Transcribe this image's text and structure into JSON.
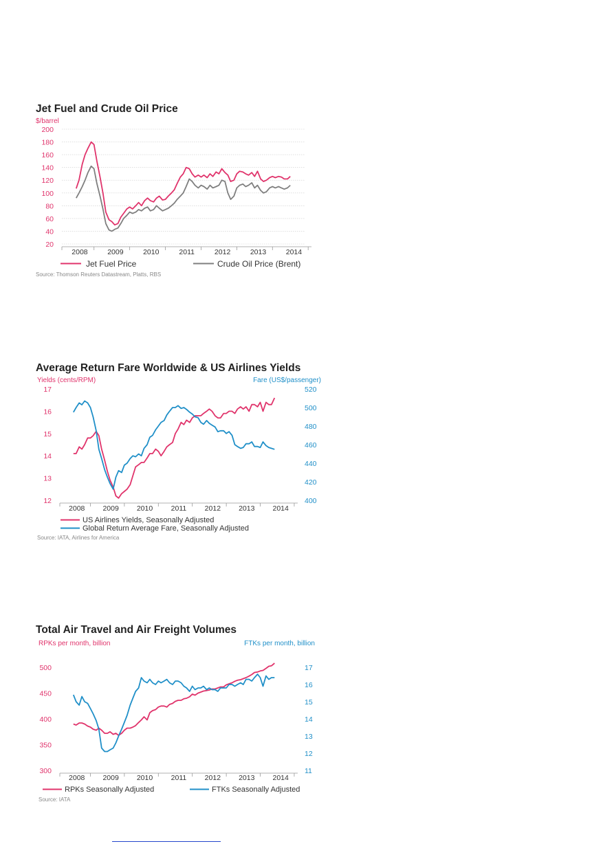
{
  "colors": {
    "pink": "#e0336b",
    "gray": "#7f7f7f",
    "blue": "#1f8fc8"
  },
  "chart_data": [
    {
      "type": "line",
      "title": "Jet Fuel and Crude Oil Price",
      "ylabel": "$/barrel",
      "ylim": [
        20,
        200
      ],
      "yticks": [
        20,
        40,
        60,
        80,
        100,
        120,
        140,
        160,
        180,
        200
      ],
      "xlim": [
        2007.6,
        2014.4
      ],
      "xticks": [
        "2008",
        "2009",
        "2010",
        "2011",
        "2012",
        "2013",
        "2014"
      ],
      "grid": true,
      "legend_position": "bottom",
      "source": "Source: Thomson Reuters Datastream, Platts, RBS",
      "series": [
        {
          "name": "Jet Fuel Price",
          "color": "#e0336b",
          "x": [
            2008.0,
            2008.08,
            2008.17,
            2008.25,
            2008.33,
            2008.42,
            2008.5,
            2008.58,
            2008.67,
            2008.75,
            2008.83,
            2008.92,
            2009.0,
            2009.08,
            2009.17,
            2009.25,
            2009.33,
            2009.42,
            2009.5,
            2009.58,
            2009.67,
            2009.75,
            2009.83,
            2009.92,
            2010.0,
            2010.08,
            2010.17,
            2010.25,
            2010.33,
            2010.42,
            2010.5,
            2010.58,
            2010.67,
            2010.75,
            2010.83,
            2010.92,
            2011.0,
            2011.08,
            2011.17,
            2011.25,
            2011.33,
            2011.42,
            2011.5,
            2011.58,
            2011.67,
            2011.75,
            2011.83,
            2011.92,
            2012.0,
            2012.08,
            2012.17,
            2012.25,
            2012.33,
            2012.42,
            2012.5,
            2012.58,
            2012.67,
            2012.75,
            2012.83,
            2012.92,
            2013.0,
            2013.08,
            2013.17,
            2013.25,
            2013.33,
            2013.42,
            2013.5,
            2013.58,
            2013.67,
            2013.75,
            2013.83,
            2013.92,
            2014.0
          ],
          "values": [
            107,
            120,
            145,
            160,
            170,
            180,
            176,
            150,
            125,
            100,
            70,
            58,
            55,
            50,
            52,
            62,
            68,
            75,
            78,
            75,
            80,
            85,
            80,
            88,
            92,
            88,
            86,
            92,
            95,
            89,
            90,
            95,
            100,
            105,
            115,
            125,
            130,
            140,
            138,
            130,
            125,
            128,
            125,
            128,
            124,
            130,
            126,
            133,
            130,
            138,
            132,
            128,
            118,
            120,
            130,
            134,
            133,
            130,
            128,
            132,
            126,
            134,
            122,
            118,
            120,
            124,
            126,
            124,
            126,
            125,
            122,
            122,
            126
          ]
        },
        {
          "name": "Crude Oil Price (Brent)",
          "color": "#7f7f7f",
          "x": [
            2008.0,
            2008.08,
            2008.17,
            2008.25,
            2008.33,
            2008.42,
            2008.5,
            2008.58,
            2008.67,
            2008.75,
            2008.83,
            2008.92,
            2009.0,
            2009.08,
            2009.17,
            2009.25,
            2009.33,
            2009.42,
            2009.5,
            2009.58,
            2009.67,
            2009.75,
            2009.83,
            2009.92,
            2010.0,
            2010.08,
            2010.17,
            2010.25,
            2010.33,
            2010.42,
            2010.5,
            2010.58,
            2010.67,
            2010.75,
            2010.83,
            2010.92,
            2011.0,
            2011.08,
            2011.17,
            2011.25,
            2011.33,
            2011.42,
            2011.5,
            2011.58,
            2011.67,
            2011.75,
            2011.83,
            2011.92,
            2012.0,
            2012.08,
            2012.17,
            2012.25,
            2012.33,
            2012.42,
            2012.5,
            2012.58,
            2012.67,
            2012.75,
            2012.83,
            2012.92,
            2013.0,
            2013.08,
            2013.17,
            2013.25,
            2013.33,
            2013.42,
            2013.5,
            2013.58,
            2013.67,
            2013.75,
            2013.83,
            2013.92,
            2014.0
          ],
          "values": [
            92,
            100,
            110,
            120,
            132,
            142,
            138,
            115,
            95,
            75,
            52,
            42,
            40,
            43,
            45,
            52,
            60,
            65,
            70,
            68,
            70,
            74,
            72,
            76,
            78,
            72,
            74,
            80,
            76,
            72,
            74,
            76,
            80,
            84,
            90,
            95,
            100,
            110,
            122,
            118,
            112,
            108,
            112,
            110,
            106,
            112,
            108,
            110,
            112,
            120,
            118,
            100,
            90,
            95,
            108,
            112,
            114,
            110,
            112,
            116,
            108,
            112,
            104,
            100,
            102,
            108,
            110,
            108,
            110,
            108,
            106,
            108,
            112
          ]
        }
      ]
    },
    {
      "type": "line",
      "title": "Average Return Fare Worldwide & US Airlines Yields",
      "ylabel": "Yields (cents/RPM)",
      "y2label": "Fare (US$/passenger)",
      "ylim": [
        12,
        17
      ],
      "yticks": [
        12,
        13,
        14,
        15,
        16,
        17
      ],
      "y2lim": [
        400,
        520
      ],
      "y2ticks": [
        400,
        420,
        440,
        460,
        480,
        500,
        520
      ],
      "xlim": [
        2007.6,
        2014.4
      ],
      "xticks": [
        "2008",
        "2009",
        "2010",
        "2011",
        "2012",
        "2013",
        "2014"
      ],
      "grid": false,
      "legend_position": "bottom",
      "source": "Source: IATA, Airlines for America",
      "series": [
        {
          "name": "US Airlines Yields, Seasonally Adjusted",
          "axis": "left",
          "color": "#e0336b",
          "x": [
            2008.0,
            2008.08,
            2008.17,
            2008.25,
            2008.33,
            2008.42,
            2008.5,
            2008.58,
            2008.67,
            2008.75,
            2008.83,
            2008.92,
            2009.0,
            2009.08,
            2009.17,
            2009.25,
            2009.33,
            2009.42,
            2009.5,
            2009.58,
            2009.67,
            2009.75,
            2009.83,
            2009.92,
            2010.0,
            2010.08,
            2010.17,
            2010.25,
            2010.33,
            2010.42,
            2010.5,
            2010.58,
            2010.67,
            2010.75,
            2010.83,
            2010.92,
            2011.0,
            2011.08,
            2011.17,
            2011.25,
            2011.33,
            2011.42,
            2011.5,
            2011.58,
            2011.67,
            2011.75,
            2011.83,
            2011.92,
            2012.0,
            2012.08,
            2012.17,
            2012.25,
            2012.33,
            2012.42,
            2012.5,
            2012.58,
            2012.67,
            2012.75,
            2012.83,
            2012.92,
            2013.0,
            2013.08,
            2013.17,
            2013.25,
            2013.33,
            2013.42,
            2013.5,
            2013.58,
            2013.67,
            2013.75,
            2013.83,
            2013.92
          ],
          "values": [
            14.1,
            14.1,
            14.4,
            14.3,
            14.5,
            14.8,
            14.8,
            14.9,
            15.1,
            14.9,
            14.3,
            13.8,
            13.3,
            12.9,
            12.6,
            12.2,
            12.1,
            12.3,
            12.4,
            12.5,
            12.7,
            13.1,
            13.5,
            13.6,
            13.7,
            13.7,
            13.9,
            14.1,
            14.1,
            14.3,
            14.2,
            14.0,
            14.2,
            14.4,
            14.5,
            14.6,
            15.0,
            15.2,
            15.5,
            15.4,
            15.6,
            15.5,
            15.7,
            15.8,
            15.8,
            15.8,
            15.9,
            16.0,
            16.1,
            16.0,
            15.8,
            15.7,
            15.7,
            15.9,
            15.9,
            16.0,
            16.0,
            15.9,
            16.1,
            16.2,
            16.1,
            16.2,
            16.0,
            16.3,
            16.3,
            16.2,
            16.4,
            16.0,
            16.4,
            16.3,
            16.3,
            16.6
          ]
        },
        {
          "name": "Global Return Average Fare,  Seasonally Adjusted",
          "axis": "right",
          "color": "#1f8fc8",
          "x": [
            2008.0,
            2008.08,
            2008.17,
            2008.25,
            2008.33,
            2008.42,
            2008.5,
            2008.58,
            2008.67,
            2008.75,
            2008.83,
            2008.92,
            2009.0,
            2009.08,
            2009.17,
            2009.25,
            2009.33,
            2009.42,
            2009.5,
            2009.58,
            2009.67,
            2009.75,
            2009.83,
            2009.92,
            2010.0,
            2010.08,
            2010.17,
            2010.25,
            2010.33,
            2010.42,
            2010.5,
            2010.58,
            2010.67,
            2010.75,
            2010.83,
            2010.92,
            2011.0,
            2011.08,
            2011.17,
            2011.25,
            2011.33,
            2011.42,
            2011.5,
            2011.58,
            2011.67,
            2011.75,
            2011.83,
            2011.92,
            2012.0,
            2012.08,
            2012.17,
            2012.25,
            2012.33,
            2012.42,
            2012.5,
            2012.58,
            2012.67,
            2012.75,
            2012.83,
            2012.92,
            2013.0,
            2013.08,
            2013.17,
            2013.25,
            2013.33,
            2013.42,
            2013.5,
            2013.58,
            2013.67,
            2013.75,
            2013.83,
            2013.92
          ],
          "values": [
            495,
            500,
            505,
            503,
            507,
            505,
            500,
            490,
            475,
            455,
            445,
            433,
            425,
            418,
            412,
            425,
            432,
            430,
            438,
            440,
            445,
            448,
            447,
            450,
            448,
            456,
            460,
            468,
            470,
            476,
            480,
            484,
            486,
            492,
            496,
            500,
            500,
            502,
            499,
            500,
            498,
            495,
            493,
            490,
            489,
            484,
            482,
            486,
            483,
            481,
            479,
            474,
            475,
            475,
            472,
            474,
            470,
            460,
            458,
            456,
            457,
            461,
            461,
            463,
            458,
            458,
            457,
            463,
            459,
            457,
            456,
            455
          ]
        }
      ]
    },
    {
      "type": "line",
      "title": "Total Air Travel and Air Freight Volumes",
      "ylabel": "RPKs per month, billion",
      "y2label": "FTKs per month, billion",
      "ylim": [
        300,
        500
      ],
      "yticks": [
        300,
        350,
        400,
        450,
        500
      ],
      "y2lim": [
        11,
        17
      ],
      "y2ticks": [
        11,
        12,
        13,
        14,
        15,
        16,
        17
      ],
      "xlim": [
        2007.6,
        2014.4
      ],
      "xticks": [
        "2008",
        "2009",
        "2010",
        "2011",
        "2012",
        "2013",
        "2014"
      ],
      "grid": false,
      "legend_position": "bottom",
      "source": "Source: IATA",
      "series": [
        {
          "name": "RPKs Seasonally Adjusted",
          "axis": "left",
          "color": "#e0336b",
          "x": [
            2008.0,
            2008.08,
            2008.17,
            2008.25,
            2008.33,
            2008.42,
            2008.5,
            2008.58,
            2008.67,
            2008.75,
            2008.83,
            2008.92,
            2009.0,
            2009.08,
            2009.17,
            2009.25,
            2009.33,
            2009.42,
            2009.5,
            2009.58,
            2009.67,
            2009.75,
            2009.83,
            2009.92,
            2010.0,
            2010.08,
            2010.17,
            2010.25,
            2010.33,
            2010.42,
            2010.5,
            2010.58,
            2010.67,
            2010.75,
            2010.83,
            2010.92,
            2011.0,
            2011.08,
            2011.17,
            2011.25,
            2011.33,
            2011.42,
            2011.5,
            2011.58,
            2011.67,
            2011.75,
            2011.83,
            2011.92,
            2012.0,
            2012.08,
            2012.17,
            2012.25,
            2012.33,
            2012.42,
            2012.5,
            2012.58,
            2012.67,
            2012.75,
            2012.83,
            2012.92,
            2013.0,
            2013.08,
            2013.17,
            2013.25,
            2013.33,
            2013.42,
            2013.5,
            2013.58,
            2013.67,
            2013.75,
            2013.83,
            2013.92
          ],
          "values": [
            390,
            388,
            392,
            392,
            390,
            386,
            384,
            380,
            378,
            382,
            378,
            372,
            372,
            375,
            370,
            372,
            368,
            372,
            378,
            382,
            382,
            384,
            387,
            393,
            398,
            404,
            398,
            412,
            416,
            418,
            423,
            425,
            425,
            423,
            428,
            430,
            434,
            436,
            436,
            439,
            440,
            443,
            448,
            446,
            450,
            452,
            454,
            455,
            456,
            458,
            458,
            460,
            462,
            462,
            466,
            468,
            470,
            473,
            475,
            476,
            478,
            480,
            483,
            486,
            490,
            491,
            493,
            494,
            498,
            502,
            503,
            508
          ]
        },
        {
          "name": "FTKs Seasonally Adjusted",
          "axis": "right",
          "color": "#1f8fc8",
          "x": [
            2008.0,
            2008.08,
            2008.17,
            2008.25,
            2008.33,
            2008.42,
            2008.5,
            2008.58,
            2008.67,
            2008.75,
            2008.83,
            2008.92,
            2009.0,
            2009.08,
            2009.17,
            2009.25,
            2009.33,
            2009.42,
            2009.5,
            2009.58,
            2009.67,
            2009.75,
            2009.83,
            2009.92,
            2010.0,
            2010.08,
            2010.17,
            2010.25,
            2010.33,
            2010.42,
            2010.5,
            2010.58,
            2010.67,
            2010.75,
            2010.83,
            2010.92,
            2011.0,
            2011.08,
            2011.17,
            2011.25,
            2011.33,
            2011.42,
            2011.5,
            2011.58,
            2011.67,
            2011.75,
            2011.83,
            2011.92,
            2012.0,
            2012.08,
            2012.17,
            2012.25,
            2012.33,
            2012.42,
            2012.5,
            2012.58,
            2012.67,
            2012.75,
            2012.83,
            2012.92,
            2013.0,
            2013.08,
            2013.17,
            2013.25,
            2013.33,
            2013.42,
            2013.5,
            2013.58,
            2013.67,
            2013.75,
            2013.83,
            2013.92
          ],
          "values": [
            15.4,
            15.0,
            14.8,
            15.3,
            15.0,
            14.9,
            14.6,
            14.3,
            13.9,
            13.4,
            12.3,
            12.1,
            12.1,
            12.2,
            12.3,
            12.6,
            13.0,
            13.4,
            13.8,
            14.2,
            14.8,
            15.2,
            15.6,
            15.8,
            16.4,
            16.2,
            16.1,
            16.3,
            16.1,
            16.0,
            16.2,
            16.1,
            16.2,
            16.3,
            16.1,
            16.0,
            16.2,
            16.2,
            16.1,
            15.9,
            15.8,
            15.6,
            15.9,
            15.7,
            15.8,
            15.8,
            15.9,
            15.7,
            15.8,
            15.7,
            15.7,
            15.6,
            15.8,
            15.8,
            15.8,
            16.0,
            16.0,
            15.9,
            16.0,
            16.1,
            16.0,
            16.3,
            16.3,
            16.2,
            16.4,
            16.6,
            16.4,
            15.9,
            16.5,
            16.3,
            16.4,
            16.4
          ]
        }
      ]
    }
  ]
}
